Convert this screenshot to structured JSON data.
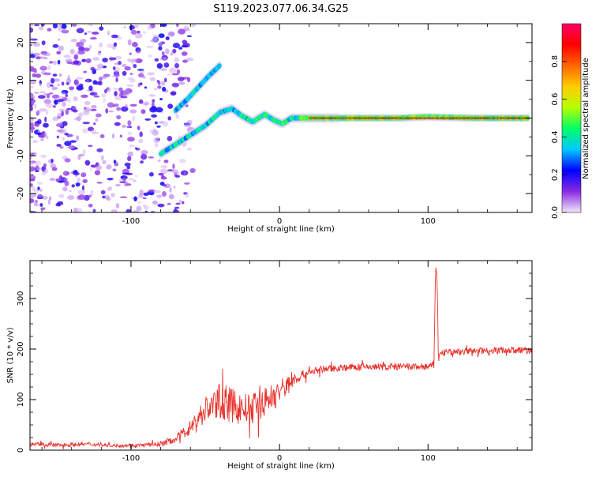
{
  "title": "S119.2023.077.06.34.G25",
  "colors": {
    "background": "#ffffff",
    "axis": "#000000",
    "snr_line": "#e8302a",
    "colorbar_stops": [
      "#f2e6fa",
      "#8a2be2",
      "#0000ff",
      "#00c8ff",
      "#00ff66",
      "#b4ff00",
      "#ffcc00",
      "#ff6600",
      "#ff0000",
      "#ff0066"
    ]
  },
  "chart_data": [
    {
      "type": "heatmap",
      "title": "",
      "xlabel": "Height of straight line (km)",
      "ylabel": "Frequency (Hz)",
      "xlim": [
        -168,
        170
      ],
      "ylim": [
        -25,
        25
      ],
      "x_ticks": [
        -100,
        0,
        100
      ],
      "x_tick_labels": [
        "-100",
        "0",
        "100"
      ],
      "y_ticks": [
        -20,
        -10,
        0,
        10,
        20
      ],
      "y_tick_labels": [
        "-20",
        "-10",
        "0",
        "10",
        "20"
      ],
      "grid": false,
      "colorbar": {
        "label": "Normalized spectral amplitude",
        "range": [
          0,
          1
        ],
        "ticks": [
          0.0,
          0.2,
          0.4,
          0.6,
          0.8
        ],
        "tick_labels": [
          "0.0",
          "0.2",
          "0.4",
          "0.6",
          "0.8"
        ]
      },
      "ridges": [
        {
          "name": "",
          "points": [
            [
              -80,
              -9.5
            ],
            [
              -70,
              -7
            ],
            [
              -60,
              -4.5
            ],
            [
              -50,
              -2
            ],
            [
              -40,
              1.5
            ],
            [
              -32,
              2.5
            ],
            [
              -25,
              0.5
            ],
            [
              -18,
              -1
            ],
            [
              -10,
              1
            ],
            [
              -4,
              -0.5
            ],
            [
              2,
              -1.5
            ],
            [
              8,
              0
            ],
            [
              15,
              0
            ],
            [
              40,
              0
            ],
            [
              80,
              0
            ],
            [
              100,
              0.3
            ],
            [
              130,
              0
            ],
            [
              168,
              0
            ]
          ]
        },
        {
          "name": "",
          "points": [
            [
              -70,
              2
            ],
            [
              -62,
              5
            ],
            [
              -55,
              8
            ],
            [
              -48,
              11
            ],
            [
              -40,
              14
            ]
          ]
        }
      ]
    },
    {
      "type": "line",
      "title": "",
      "xlabel": "Height of straight line (km)",
      "ylabel": "SNR (10 * v/v)",
      "xlim": [
        -168,
        170
      ],
      "ylim": [
        0,
        375
      ],
      "x_ticks": [
        -100,
        0,
        100
      ],
      "x_tick_labels": [
        "-100",
        "0",
        "100"
      ],
      "y_ticks": [
        0,
        100,
        200,
        300
      ],
      "y_tick_labels": [
        "0",
        "100",
        "200",
        "300"
      ],
      "grid": false,
      "series": [
        {
          "name": "",
          "x": [
            -168,
            -150,
            -130,
            -110,
            -90,
            -80,
            -70,
            -60,
            -50,
            -40,
            -30,
            -20,
            -10,
            0,
            10,
            20,
            30,
            40,
            60,
            80,
            100,
            104,
            105,
            106,
            107,
            108,
            110,
            130,
            150,
            170
          ],
          "y": [
            12,
            10,
            12,
            9,
            10,
            12,
            22,
            45,
            80,
            98,
            85,
            80,
            95,
            115,
            140,
            155,
            160,
            163,
            165,
            165,
            165,
            168,
            355,
            360,
            180,
            190,
            193,
            196,
            198,
            197
          ],
          "noise": [
            4,
            4,
            4,
            3,
            4,
            5,
            8,
            15,
            28,
            35,
            35,
            30,
            30,
            28,
            12,
            8,
            7,
            7,
            7,
            7,
            7,
            8,
            10,
            10,
            8,
            8,
            7,
            7,
            7,
            7
          ]
        }
      ]
    }
  ]
}
